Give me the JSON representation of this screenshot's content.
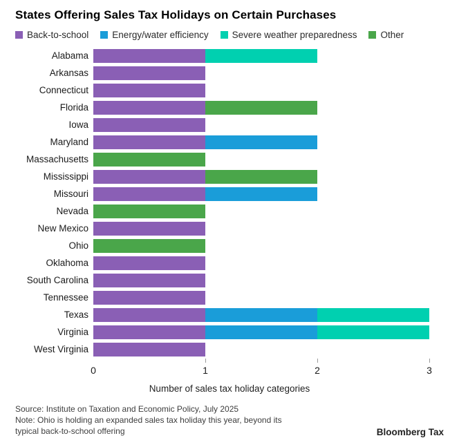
{
  "title": "States Offering Sales Tax Holidays on Certain Purchases",
  "chart_data": {
    "type": "bar",
    "orientation": "horizontal",
    "stacked": true,
    "title": "States Offering Sales Tax Holidays on Certain Purchases",
    "categories": [
      "Alabama",
      "Arkansas",
      "Connecticut",
      "Florida",
      "Iowa",
      "Maryland",
      "Massachusetts",
      "Mississippi",
      "Missouri",
      "Nevada",
      "New Mexico",
      "Ohio",
      "Oklahoma",
      "South Carolina",
      "Tennessee",
      "Texas",
      "Virginia",
      "West Virginia"
    ],
    "series": [
      {
        "name": "Back-to-school",
        "slug": "back-to-school",
        "color": "#8a5fb5",
        "values": [
          1,
          1,
          1,
          1,
          1,
          1,
          0,
          1,
          1,
          0,
          1,
          0,
          1,
          1,
          1,
          1,
          1,
          1
        ]
      },
      {
        "name": "Energy/water efficiency",
        "slug": "energy-water-efficiency",
        "color": "#1a9dd9",
        "values": [
          0,
          0,
          0,
          0,
          0,
          1,
          0,
          0,
          1,
          0,
          0,
          0,
          0,
          0,
          0,
          1,
          1,
          0
        ]
      },
      {
        "name": "Severe weather preparedness",
        "slug": "severe-weather-preparedness",
        "color": "#00d0b0",
        "values": [
          1,
          0,
          0,
          0,
          0,
          0,
          0,
          0,
          0,
          0,
          0,
          0,
          0,
          0,
          0,
          1,
          1,
          0
        ]
      },
      {
        "name": "Other",
        "slug": "other",
        "color": "#4aa64a",
        "values": [
          0,
          0,
          0,
          1,
          0,
          0,
          1,
          1,
          0,
          1,
          0,
          1,
          0,
          0,
          0,
          0,
          0,
          0
        ]
      }
    ],
    "totals": [
      2,
      1,
      1,
      2,
      1,
      2,
      1,
      2,
      2,
      1,
      1,
      1,
      1,
      1,
      1,
      3,
      3,
      1
    ],
    "xlabel": "Number of sales tax holiday categories",
    "xticks": [
      0,
      1,
      2,
      3
    ],
    "xlim": [
      0,
      3
    ],
    "grid": false,
    "legend_position": "top"
  },
  "x_axis": {
    "label": "Number of sales tax holiday categories"
  },
  "footer": {
    "source": "Source: Institute on Taxation and Economic Policy, July 2025",
    "note_line1": "Note: Ohio is holding an expanded sales tax holiday this year, beyond its",
    "note_line2": "typical back-to-school offering",
    "logo": "Bloomberg Tax"
  }
}
